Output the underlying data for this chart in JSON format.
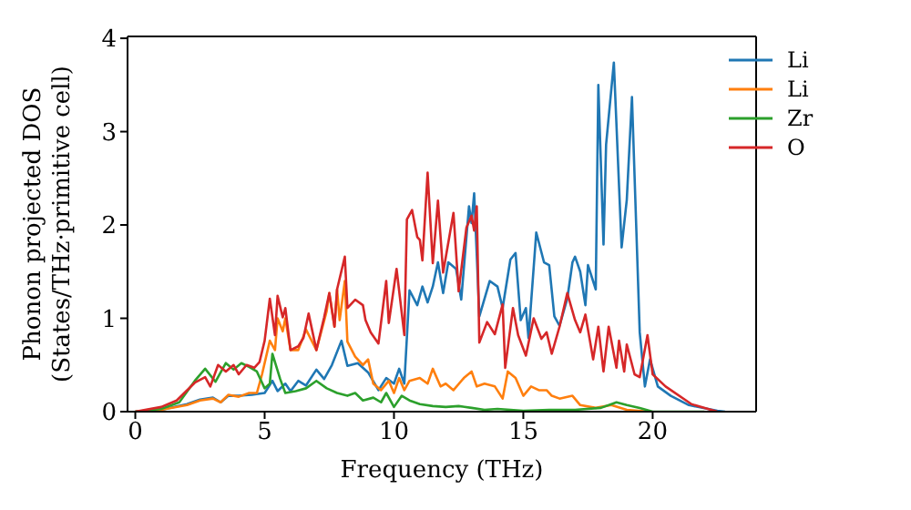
{
  "chart_data": {
    "type": "line",
    "xlabel": "Frequency (THz)",
    "ylabel": "Phonon projected DOS\n(States/THz·primitive cell)",
    "xlim": [
      -0.3,
      24
    ],
    "ylim": [
      0,
      4.02
    ],
    "xticks": [
      0,
      5,
      10,
      15,
      20
    ],
    "yticks": [
      0,
      1,
      2,
      3,
      4
    ],
    "legend": "top right",
    "series": [
      {
        "name": "Li",
        "color": "#1f77b4",
        "x": [
          0,
          1,
          2,
          2.5,
          3,
          3.3,
          3.6,
          4,
          4.5,
          5,
          5.3,
          5.5,
          5.8,
          6,
          6.3,
          6.6,
          7,
          7.3,
          7.6,
          7.97,
          8.2,
          8.6,
          9.0,
          9.4,
          9.7,
          10.0,
          10.2,
          10.4,
          10.6,
          10.9,
          11.1,
          11.3,
          11.5,
          11.7,
          11.9,
          12.1,
          12.4,
          12.6,
          12.9,
          13.0,
          13.1,
          13.3,
          13.7,
          14.0,
          14.2,
          14.5,
          14.7,
          14.9,
          15.1,
          15.2,
          15.5,
          15.8,
          16.0,
          16.2,
          16.4,
          16.7,
          16.9,
          17.0,
          17.2,
          17.4,
          17.5,
          17.8,
          17.9,
          18.1,
          18.2,
          18.5,
          18.8,
          19.0,
          19.2,
          19.5,
          19.7,
          19.9,
          20.2,
          20.7,
          21.4,
          22.5,
          22.8
        ],
        "values": [
          0,
          0.02,
          0.08,
          0.13,
          0.15,
          0.1,
          0.17,
          0.17,
          0.18,
          0.2,
          0.33,
          0.22,
          0.3,
          0.22,
          0.33,
          0.28,
          0.45,
          0.35,
          0.5,
          0.76,
          0.49,
          0.52,
          0.42,
          0.23,
          0.36,
          0.3,
          0.46,
          0.3,
          1.3,
          1.14,
          1.34,
          1.17,
          1.34,
          1.6,
          1.27,
          1.6,
          1.53,
          1.2,
          2.2,
          2.02,
          2.34,
          1.02,
          1.4,
          1.34,
          1.11,
          1.63,
          1.7,
          0.98,
          1.11,
          0.79,
          1.92,
          1.6,
          1.57,
          1.02,
          0.92,
          1.21,
          1.6,
          1.66,
          1.5,
          1.14,
          1.57,
          1.31,
          3.5,
          1.79,
          2.86,
          3.74,
          1.76,
          2.27,
          3.37,
          0.85,
          0.27,
          0.56,
          0.27,
          0.17,
          0.07,
          0.01,
          0
        ]
      },
      {
        "name": "Li",
        "color": "#ff7f0e",
        "x": [
          0,
          1,
          2,
          2.5,
          3,
          3.3,
          3.6,
          4,
          4.4,
          4.7,
          4.9,
          5.2,
          5.4,
          5.5,
          5.7,
          5.8,
          6.0,
          6.3,
          6.6,
          7.0,
          7.4,
          7.5,
          7.7,
          7.8,
          7.9,
          8.1,
          8.2,
          8.5,
          8.8,
          9.0,
          9.2,
          9.5,
          9.8,
          10.0,
          10.2,
          10.4,
          10.6,
          11.0,
          11.3,
          11.5,
          11.8,
          12.0,
          12.3,
          12.7,
          13.0,
          13.2,
          13.5,
          13.9,
          14.2,
          14.4,
          14.7,
          15.0,
          15.3,
          15.6,
          15.9,
          16.1,
          16.4,
          16.9,
          17.2,
          17.8,
          18.4,
          19.0,
          19.9
        ],
        "values": [
          0,
          0.02,
          0.07,
          0.12,
          0.14,
          0.1,
          0.18,
          0.16,
          0.2,
          0.2,
          0.4,
          0.76,
          0.66,
          1.0,
          0.86,
          1.0,
          0.66,
          0.66,
          0.88,
          0.66,
          1.08,
          1.27,
          0.91,
          1.31,
          0.98,
          1.4,
          0.75,
          0.59,
          0.5,
          0.56,
          0.3,
          0.23,
          0.33,
          0.2,
          0.36,
          0.23,
          0.33,
          0.36,
          0.3,
          0.46,
          0.27,
          0.3,
          0.23,
          0.36,
          0.43,
          0.27,
          0.3,
          0.27,
          0.14,
          0.43,
          0.36,
          0.17,
          0.27,
          0.23,
          0.23,
          0.17,
          0.14,
          0.17,
          0.07,
          0.04,
          0.07,
          0.02,
          0
        ]
      },
      {
        "name": "Zr",
        "color": "#2ca02c",
        "x": [
          0,
          1,
          1.7,
          2.3,
          2.7,
          3.1,
          3.5,
          3.8,
          4.1,
          4.4,
          4.7,
          5.0,
          5.2,
          5.3,
          5.6,
          5.8,
          6.2,
          6.6,
          7.0,
          7.4,
          7.8,
          8.2,
          8.5,
          8.8,
          9.2,
          9.5,
          9.7,
          10.0,
          10.3,
          10.6,
          11,
          11.5,
          12,
          12.5,
          13,
          13.5,
          14,
          15,
          16,
          17,
          18,
          18.6,
          19,
          19.5,
          20,
          22
        ],
        "values": [
          0,
          0.03,
          0.1,
          0.33,
          0.46,
          0.32,
          0.52,
          0.45,
          0.52,
          0.48,
          0.43,
          0.25,
          0.3,
          0.62,
          0.35,
          0.2,
          0.22,
          0.25,
          0.33,
          0.25,
          0.2,
          0.17,
          0.2,
          0.12,
          0.15,
          0.1,
          0.2,
          0.05,
          0.17,
          0.12,
          0.08,
          0.06,
          0.05,
          0.06,
          0.04,
          0.02,
          0.03,
          0.01,
          0.02,
          0.02,
          0.04,
          0.1,
          0.07,
          0.04,
          0,
          0
        ]
      },
      {
        "name": "O",
        "color": "#d62728",
        "x": [
          0,
          1,
          1.6,
          2.3,
          2.7,
          2.9,
          3.2,
          3.5,
          3.8,
          4.0,
          4.3,
          4.6,
          4.8,
          5.0,
          5.2,
          5.4,
          5.5,
          5.7,
          5.8,
          6.0,
          6.3,
          6.5,
          6.7,
          7.0,
          7.3,
          7.5,
          7.7,
          7.8,
          8.1,
          8.2,
          8.5,
          8.8,
          8.9,
          9.1,
          9.4,
          9.7,
          9.8,
          10.1,
          10.4,
          10.5,
          10.7,
          10.9,
          11.0,
          11.1,
          11.3,
          11.5,
          11.7,
          11.9,
          12.3,
          12.5,
          12.8,
          13.0,
          13.1,
          13.2,
          13.3,
          13.6,
          13.9,
          14.2,
          14.3,
          14.6,
          14.8,
          15.1,
          15.4,
          15.7,
          15.9,
          16.1,
          16.4,
          16.7,
          17.0,
          17.2,
          17.4,
          17.7,
          17.9,
          18.1,
          18.3,
          18.6,
          18.7,
          18.9,
          19.0,
          19.3,
          19.5,
          19.8,
          20.0,
          20.5,
          21.5,
          22.5
        ],
        "values": [
          0,
          0.05,
          0.12,
          0.31,
          0.37,
          0.27,
          0.5,
          0.43,
          0.5,
          0.4,
          0.5,
          0.47,
          0.53,
          0.76,
          1.21,
          0.82,
          1.24,
          1.01,
          1.11,
          0.66,
          0.7,
          0.79,
          1.05,
          0.66,
          1.01,
          1.27,
          0.91,
          1.31,
          1.66,
          1.11,
          1.2,
          1.14,
          0.98,
          0.85,
          0.73,
          1.4,
          0.95,
          1.53,
          0.82,
          2.06,
          2.16,
          1.87,
          1.84,
          1.62,
          2.56,
          1.59,
          2.26,
          1.49,
          2.13,
          1.29,
          1.97,
          2.1,
          1.94,
          2.2,
          0.74,
          0.96,
          0.83,
          1.15,
          0.47,
          1.11,
          0.82,
          0.6,
          1.0,
          0.78,
          0.85,
          0.62,
          0.91,
          1.27,
          0.98,
          0.85,
          1.04,
          0.56,
          0.91,
          0.43,
          0.91,
          0.47,
          0.76,
          0.43,
          0.72,
          0.4,
          0.37,
          0.82,
          0.4,
          0.27,
          0.08,
          0
        ]
      }
    ]
  }
}
